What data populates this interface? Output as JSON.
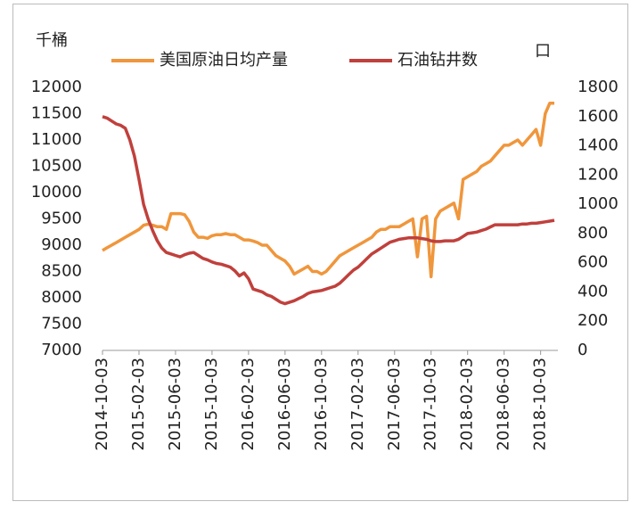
{
  "chart_data": {
    "type": "line",
    "ylabel": "千桶",
    "y2label": "口",
    "categories": [
      "2014-10-03",
      null,
      null,
      null,
      null,
      null,
      null,
      null,
      "2015-02-03",
      null,
      null,
      null,
      null,
      null,
      null,
      null,
      "2015-06-03",
      null,
      null,
      null,
      null,
      null,
      null,
      null,
      "2015-10-03",
      null,
      null,
      null,
      null,
      null,
      null,
      null,
      "2016-02-03",
      null,
      null,
      null,
      null,
      null,
      null,
      null,
      "2016-06-03",
      null,
      null,
      null,
      null,
      null,
      null,
      null,
      "2016-10-03",
      null,
      null,
      null,
      null,
      null,
      null,
      null,
      "2017-02-03",
      null,
      null,
      null,
      null,
      null,
      null,
      null,
      "2017-06-03",
      null,
      null,
      null,
      null,
      null,
      null,
      null,
      "2017-10-03",
      null,
      null,
      null,
      null,
      null,
      null,
      null,
      "2018-02-03",
      null,
      null,
      null,
      null,
      null,
      null,
      null,
      "2018-06-03",
      null,
      null,
      null,
      null,
      null,
      null,
      null,
      "2018-10-03",
      null,
      null,
      null
    ],
    "series": [
      {
        "name": "美国原油日均产量",
        "color": "#f0963c",
        "values": [
          8900,
          8950,
          9000,
          9050,
          9100,
          9150,
          9200,
          9250,
          9300,
          9380,
          9400,
          9380,
          9350,
          9350,
          9300,
          9600,
          9600,
          9600,
          9580,
          9450,
          9250,
          9150,
          9150,
          9130,
          9180,
          9200,
          9200,
          9220,
          9200,
          9200,
          9150,
          9100,
          9100,
          9080,
          9050,
          9000,
          9000,
          8900,
          8800,
          8750,
          8700,
          8600,
          8450,
          8500,
          8550,
          8600,
          8500,
          8500,
          8450,
          8500,
          8600,
          8700,
          8800,
          8850,
          8900,
          8950,
          9000,
          9050,
          9100,
          9150,
          9250,
          9300,
          9300,
          9350,
          9350,
          9350,
          9400,
          9450,
          9500,
          8780,
          9500,
          9550,
          8400,
          9500,
          9650,
          9700,
          9750,
          9800,
          9500,
          10250,
          10300,
          10350,
          10400,
          10500,
          10550,
          10600,
          10700,
          10800,
          10900,
          10900,
          10950,
          11000,
          10900,
          11000,
          11100,
          11200,
          10900,
          11500,
          11700,
          11700
        ]
      },
      {
        "name": "石油钻井数",
        "color": "#c0403c",
        "axis": "y2",
        "values": [
          1600,
          1590,
          1570,
          1550,
          1540,
          1520,
          1440,
          1330,
          1170,
          1000,
          900,
          820,
          750,
          700,
          670,
          660,
          650,
          640,
          655,
          665,
          670,
          650,
          630,
          620,
          605,
          595,
          590,
          580,
          570,
          545,
          510,
          530,
          490,
          420,
          410,
          400,
          380,
          370,
          350,
          330,
          320,
          330,
          340,
          355,
          370,
          390,
          400,
          405,
          410,
          420,
          430,
          440,
          460,
          490,
          520,
          550,
          570,
          600,
          630,
          660,
          680,
          700,
          720,
          740,
          750,
          760,
          765,
          770,
          770,
          770,
          765,
          760,
          750,
          745,
          745,
          750,
          750,
          750,
          760,
          780,
          800,
          805,
          810,
          820,
          830,
          845,
          860,
          860,
          860,
          860,
          860,
          860,
          865,
          865,
          870,
          870,
          875,
          880,
          885,
          890
        ]
      }
    ],
    "ylim": [
      7000,
      12000
    ],
    "yticks": [
      7000,
      7500,
      8000,
      8500,
      9000,
      9500,
      10000,
      10500,
      11000,
      11500,
      12000
    ],
    "y2lim": [
      0,
      1800
    ],
    "y2ticks": [
      0,
      200,
      400,
      600,
      800,
      1000,
      1200,
      1400,
      1600,
      1800
    ],
    "legend": "top",
    "grid": false
  }
}
